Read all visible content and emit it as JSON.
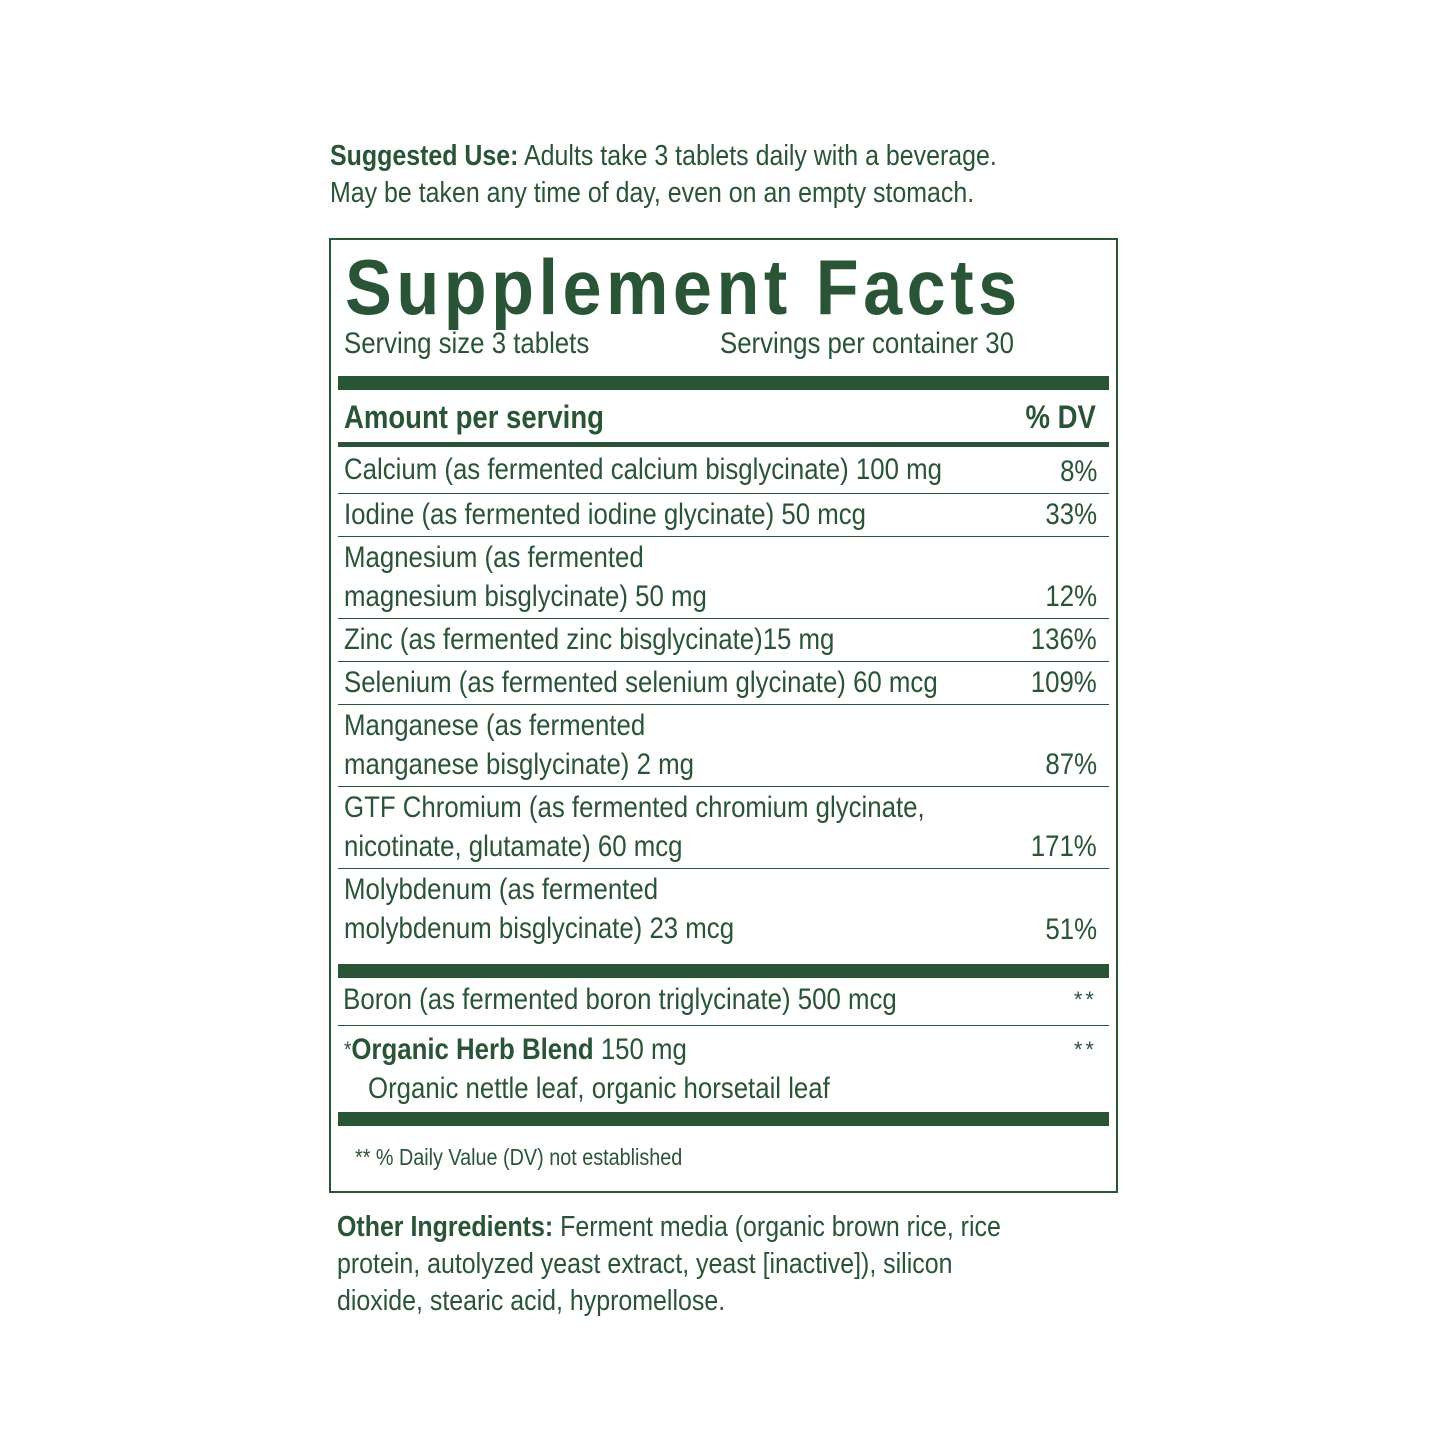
{
  "suggested_use": {
    "label": "Suggested Use:",
    "line1": "Adults take 3 tablets daily with a beverage.",
    "line2": "May be taken any time of day, even on an empty stomach."
  },
  "facts": {
    "title": "Supplement Facts",
    "serving_size": "Serving size 3 tablets",
    "servings_per_container": "Servings per container 30",
    "header_amount": "Amount per serving",
    "header_dv": "% DV",
    "rows": [
      {
        "name": [
          "Calcium (as fermented calcium bisglycinate) 100 mg"
        ],
        "dv": "8%"
      },
      {
        "name": [
          "Iodine (as fermented iodine glycinate) 50 mcg"
        ],
        "dv": "33%"
      },
      {
        "name": [
          "Magnesium (as fermented",
          "magnesium bisglycinate) 50 mg"
        ],
        "dv": "12%"
      },
      {
        "name": [
          "Zinc (as fermented zinc bisglycinate)15 mg"
        ],
        "dv": "136%"
      },
      {
        "name": [
          "Selenium (as fermented selenium glycinate) 60 mcg"
        ],
        "dv": "109%"
      },
      {
        "name": [
          "Manganese (as fermented",
          "manganese bisglycinate) 2 mg"
        ],
        "dv": "87%"
      },
      {
        "name": [
          "GTF Chromium (as fermented chromium glycinate,",
          "nicotinate, glutamate) 60 mcg"
        ],
        "dv": "171%"
      },
      {
        "name": [
          "Molybdenum (as fermented",
          "molybdenum bisglycinate) 23 mcg"
        ],
        "dv": "51%"
      }
    ],
    "boron": {
      "name": "Boron (as fermented boron triglycinate) 500 mcg",
      "dv": "**"
    },
    "herb": {
      "symbol": "*",
      "name": "Organic Herb Blend",
      "amount": "150 mg",
      "ingredients": "Organic nettle leaf, organic horsetail leaf",
      "dv": "**"
    },
    "footnote": "** % Daily Value (DV) not established"
  },
  "other_ingredients": {
    "label": "Other Ingredients:",
    "line1": "Ferment media (organic brown rice, rice",
    "line2": "protein, autolyzed yeast extract, yeast [inactive]), silicon",
    "line3": "dioxide, stearic acid, hypromellose."
  },
  "colors": {
    "text": "#2a5436",
    "background": "#ffffff"
  }
}
